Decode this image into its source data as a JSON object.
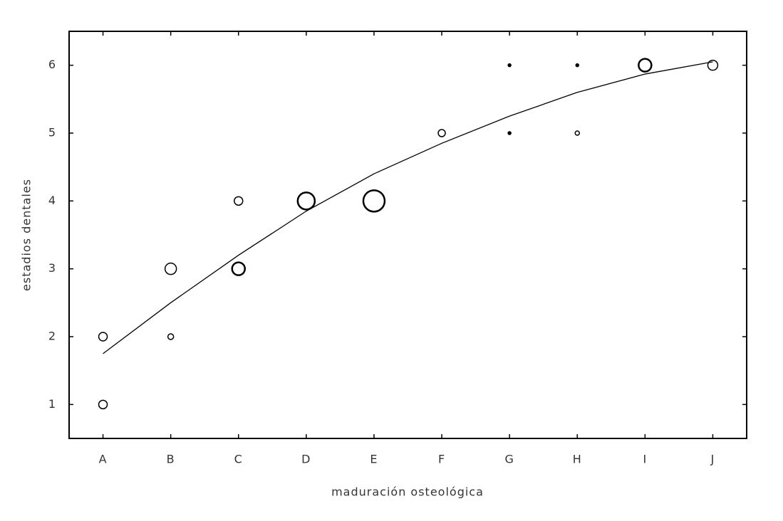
{
  "chart_data": {
    "type": "bubble",
    "xlabel": "maduración osteológica",
    "ylabel": "estadios dentales",
    "categories": [
      "A",
      "B",
      "C",
      "D",
      "E",
      "F",
      "G",
      "H",
      "I",
      "J"
    ],
    "x": [
      "A",
      "A",
      "B",
      "B",
      "C",
      "C",
      "D",
      "E",
      "F",
      "G",
      "G",
      "H",
      "H",
      "I",
      "J"
    ],
    "values": [
      2,
      1,
      3,
      2,
      4,
      3,
      4,
      4,
      5,
      6,
      5,
      6,
      5,
      6,
      6
    ],
    "sizes": [
      6,
      6,
      8,
      4,
      6,
      9,
      12,
      15,
      5,
      2,
      2,
      2,
      3,
      9,
      7
    ],
    "fit": {
      "values": [
        1.75,
        2.5,
        3.2,
        3.85,
        4.4,
        4.85,
        5.25,
        5.6,
        5.87,
        6.05
      ]
    },
    "ylim": [
      0.5,
      6.5
    ],
    "yticks": [
      1,
      2,
      3,
      4,
      5,
      6
    ],
    "color": "#000000"
  }
}
